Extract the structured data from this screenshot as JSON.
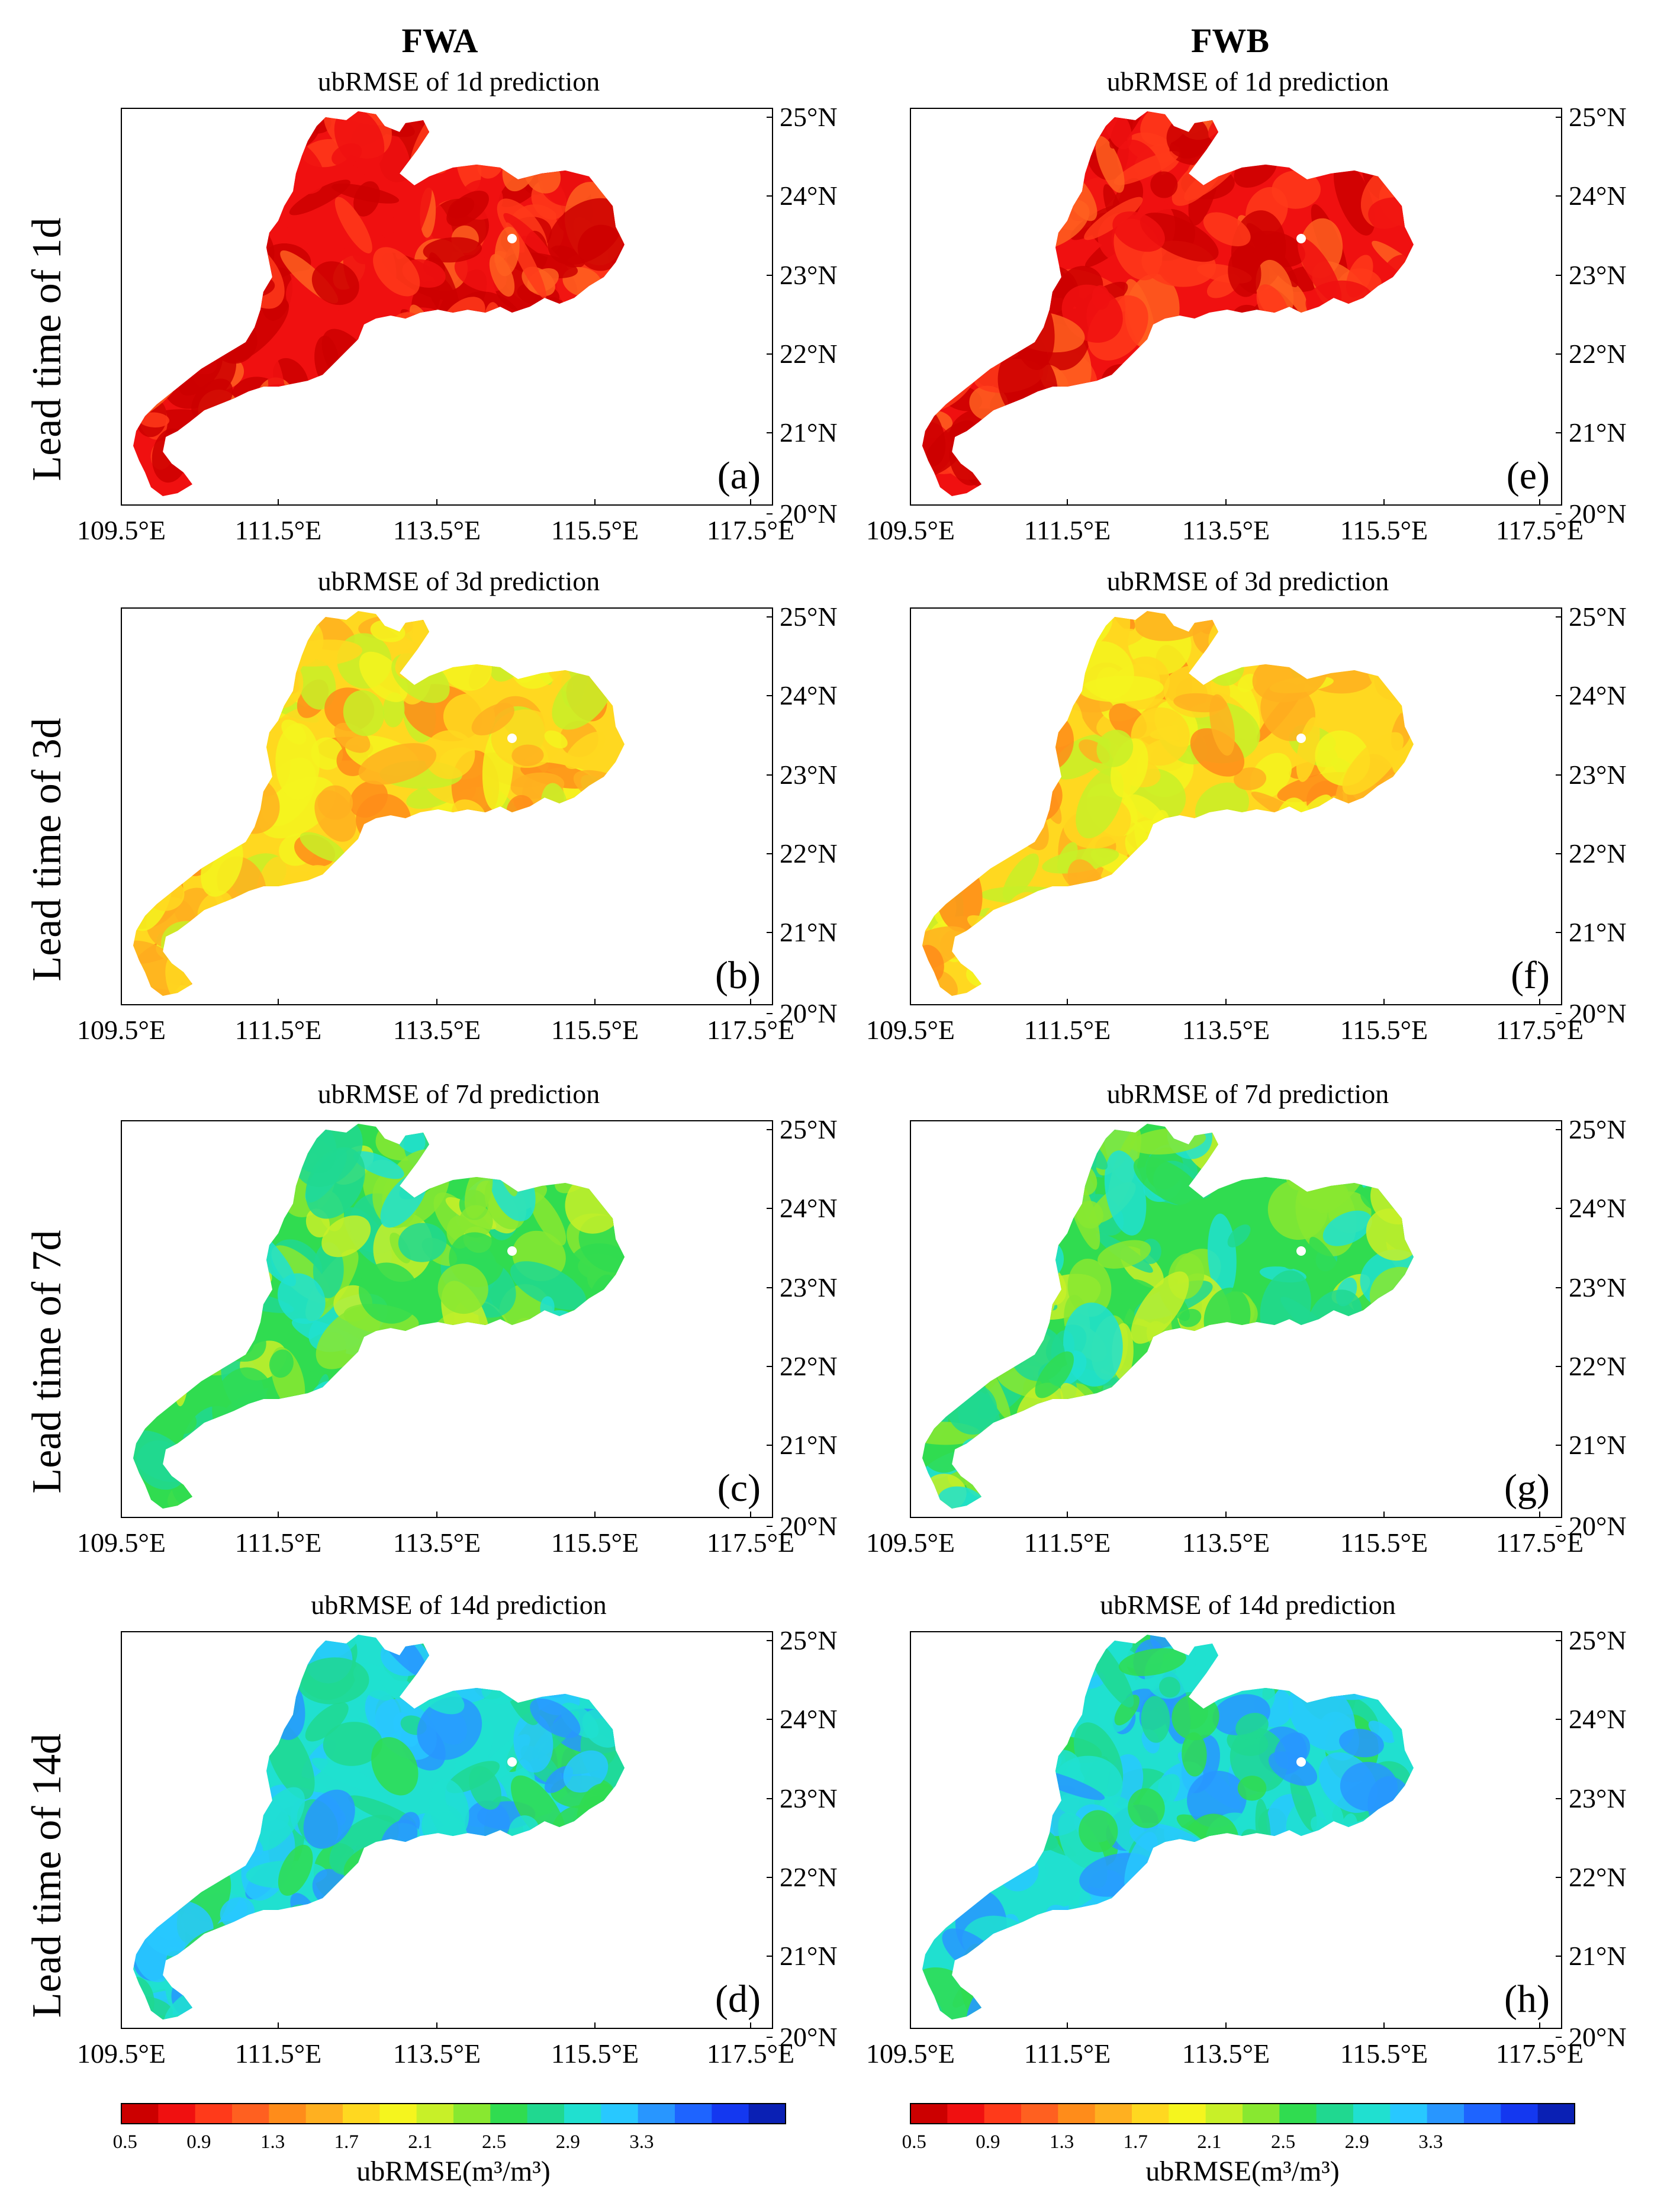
{
  "columns": [
    {
      "header": "FWA",
      "panels": [
        {
          "title": "ubRMSE of 1d prediction",
          "label": "(a)",
          "mean_level": 1
        },
        {
          "title": "ubRMSE of 3d prediction",
          "label": "(b)",
          "mean_level": 6
        },
        {
          "title": "ubRMSE of 7d prediction",
          "label": "(c)",
          "mean_level": 10
        },
        {
          "title": "ubRMSE of 14d prediction",
          "label": "(d)",
          "mean_level": 12
        }
      ]
    },
    {
      "header": "FWB",
      "panels": [
        {
          "title": "ubRMSE of 1d prediction",
          "label": "(e)",
          "mean_level": 1
        },
        {
          "title": "ubRMSE of 3d prediction",
          "label": "(f)",
          "mean_level": 6
        },
        {
          "title": "ubRMSE of 7d prediction",
          "label": "(g)",
          "mean_level": 10
        },
        {
          "title": "ubRMSE of 14d prediction",
          "label": "(h)",
          "mean_level": 12
        }
      ]
    }
  ],
  "row_labels": [
    "Lead time of 1d",
    "Lead time of 3d",
    "Lead time of 7d",
    "Lead time of 14d"
  ],
  "x_ticks": [
    "109.5°E",
    "111.5°E",
    "113.5°E",
    "115.5°E",
    "117.5°E"
  ],
  "y_ticks": [
    "25°N",
    "24°N",
    "23°N",
    "22°N",
    "21°N",
    "20°N"
  ],
  "colorbar": {
    "title": "ubRMSE(m³/m³)",
    "tick_labels": [
      "0.5",
      "0.9",
      "1.3",
      "1.7",
      "2.1",
      "2.5",
      "2.9",
      "3.3"
    ],
    "colors": [
      "#cc0000",
      "#f01010",
      "#ff3a1a",
      "#ff6020",
      "#ff8c1a",
      "#ffb020",
      "#ffd820",
      "#f5f51e",
      "#c8f028",
      "#88e830",
      "#30dc50",
      "#20d890",
      "#20e0d0",
      "#28c8ff",
      "#2896ff",
      "#1e64ff",
      "#1438f0",
      "#0a20b4"
    ]
  }
}
